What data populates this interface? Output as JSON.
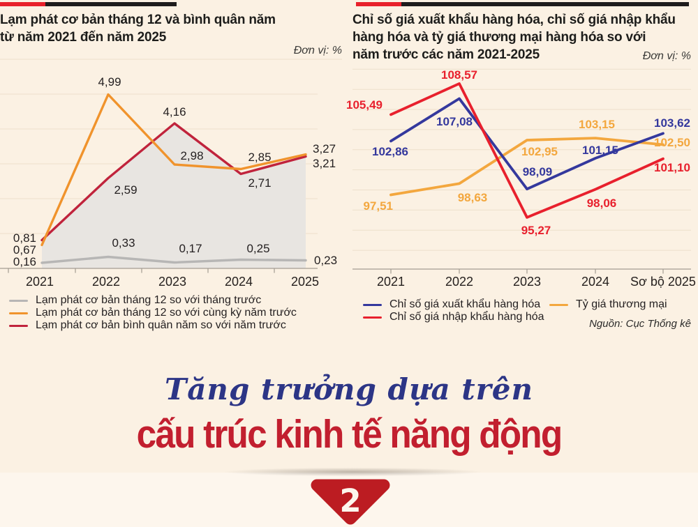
{
  "panels": {
    "left": {
      "title_lines": [
        "Lạm phát cơ bản tháng 12 và bình quân năm",
        "từ năm 2021 đến năm 2025"
      ]
    },
    "right": {
      "title_lines": [
        "Chỉ số giá xuất khẩu hàng hóa, chỉ số giá nhập khẩu",
        "hàng hóa và tỷ giá thương mại hàng hóa so với",
        "năm trước các năm 2021-2025"
      ]
    }
  },
  "chart_data": [
    {
      "type": "line",
      "title": "Lạm phát cơ bản tháng 12 và bình quân năm từ năm 2021 đến năm 2025",
      "unit": "Đơn vị: %",
      "categories": [
        "2021",
        "2022",
        "2023",
        "2024",
        "2025"
      ],
      "series": [
        {
          "name": "Lạm phát cơ bản tháng 12 so với tháng trước",
          "color": "#b7b6b5",
          "values": [
            0.16,
            0.33,
            0.17,
            0.25,
            0.23
          ]
        },
        {
          "name": "Lạm phát cơ bản tháng 12 so với cùng kỳ năm trước",
          "color": "#f0932c",
          "values": [
            0.67,
            4.99,
            2.98,
            2.85,
            3.27
          ]
        },
        {
          "name": "Lạm phát cơ bản bình quân năm so với năm trước",
          "color": "#c0233c",
          "values": [
            0.81,
            2.59,
            4.16,
            2.71,
            3.21
          ],
          "area": true,
          "area_color": "#e8e5e1"
        }
      ],
      "ylim": [
        0,
        6
      ],
      "grid": true,
      "legend_position": "bottom-left"
    },
    {
      "type": "line",
      "title": "Chỉ số giá xuất khẩu hàng hóa, chỉ số giá nhập khẩu hàng hóa và tỷ giá thương mại hàng hóa so với năm trước các năm 2021-2025",
      "unit": "Đơn vị: %",
      "categories": [
        "2021",
        "2022",
        "2023",
        "2024",
        "Sơ bộ 2025"
      ],
      "series": [
        {
          "name": "Chỉ số giá xuất khẩu hàng hóa",
          "color": "#34389d",
          "values": [
            102.86,
            107.08,
            98.09,
            101.15,
            103.62
          ]
        },
        {
          "name": "Chỉ số giá nhập khẩu hàng hóa",
          "color": "#e8202d",
          "values": [
            105.49,
            108.57,
            95.27,
            98.06,
            101.1
          ]
        },
        {
          "name": "Tỷ giá thương mại",
          "color": "#f3a73e",
          "values": [
            97.51,
            98.63,
            102.95,
            103.15,
            102.5
          ]
        }
      ],
      "ylim": [
        90,
        110
      ],
      "grid": true,
      "legend_position": "bottom",
      "source": "Nguồn: Cục Thống kê"
    }
  ],
  "banner": {
    "line1": "Tăng trưởng dựa trên",
    "line2": "cấu trúc kinh tế năng động",
    "badge_number": "2"
  },
  "colors": {
    "header_bar_red": "#e8212b",
    "header_bar_black": "#1e1c1c",
    "background_top": "#fbf1e3",
    "background_bottom": "#fdf6ed",
    "banner_blue": "#2c3586",
    "banner_red": "#c21f2f",
    "badge_red": "#bc1c22"
  }
}
